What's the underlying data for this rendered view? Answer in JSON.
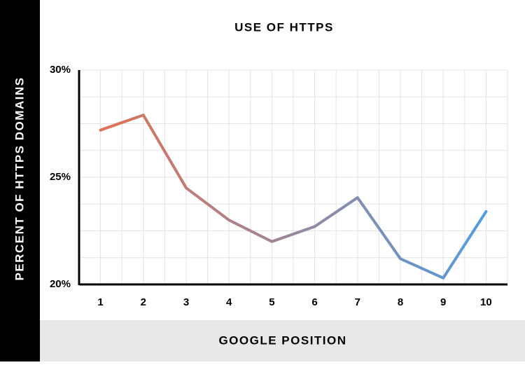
{
  "chart_data": {
    "type": "line",
    "title": "USE OF HTTPS",
    "y_label": "PERCENT OF HTTPS DOMAINS",
    "x_label": "GOOGLE POSITION",
    "categories": [
      "1",
      "2",
      "3",
      "4",
      "5",
      "6",
      "7",
      "8",
      "9",
      "10"
    ],
    "series": [
      {
        "name": "HTTPS",
        "colors": [
          "#e8704e",
          "#4b9ee8"
        ],
        "values": [
          27.2,
          27.9,
          24.5,
          23.0,
          22.0,
          22.7,
          24.05,
          21.2,
          20.3,
          23.4
        ]
      }
    ],
    "ylim": [
      20,
      30
    ],
    "yticks": [
      {
        "value": 20,
        "label": "20%"
      },
      {
        "value": 25,
        "label": "25%"
      },
      {
        "value": 30,
        "label": "30%"
      }
    ],
    "grid": true
  }
}
